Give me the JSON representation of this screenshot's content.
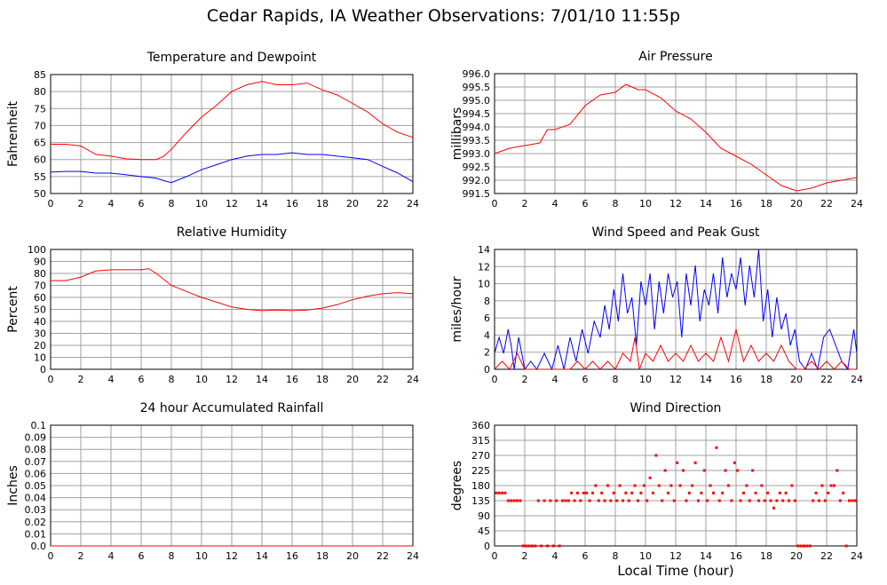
{
  "page": {
    "title": "Cedar Rapids, IA Weather Observations: 7/01/10 11:55p",
    "xlabel": "Local Time (hour)"
  },
  "colors": {
    "primary": "#ff0000",
    "secondary": "#0000ff",
    "grid": "#a0a0a0"
  },
  "chart_data": [
    {
      "id": "temp",
      "type": "line",
      "title": "Temperature and Dewpoint",
      "ylabel": "Fahrenheit",
      "xlim": [
        0,
        24
      ],
      "ylim": [
        50,
        85
      ],
      "xticks": [
        0,
        2,
        4,
        6,
        8,
        10,
        12,
        14,
        16,
        18,
        20,
        22,
        24
      ],
      "yticks": [
        "50",
        "55",
        "60",
        "65",
        "70",
        "75",
        "80",
        "85"
      ],
      "series": [
        {
          "color": "#ff0000",
          "x": [
            0,
            1,
            2,
            3,
            4,
            5,
            6,
            7,
            7.5,
            8,
            9,
            10,
            11,
            12,
            13,
            14,
            15,
            16,
            17,
            18,
            19,
            20,
            21,
            22,
            23,
            24
          ],
          "y": [
            64.5,
            64.5,
            64,
            61.5,
            61,
            60.2,
            60,
            60,
            61,
            63,
            68,
            72.5,
            76,
            80,
            82,
            83,
            82,
            82,
            82.5,
            80.5,
            79,
            76.5,
            74,
            70.5,
            68,
            66.5
          ]
        },
        {
          "color": "#0000ff",
          "x": [
            0,
            1,
            2,
            3,
            4,
            5,
            6,
            7,
            7.5,
            8,
            9,
            10,
            11,
            12,
            13,
            14,
            15,
            16,
            17,
            18,
            19,
            20,
            21,
            22,
            23,
            24
          ],
          "y": [
            56.3,
            56.5,
            56.5,
            56,
            56,
            55.5,
            55,
            54.5,
            53.8,
            53.2,
            55,
            57,
            58.5,
            60,
            61,
            61.5,
            61.5,
            62,
            61.5,
            61.5,
            61,
            60.5,
            60,
            58,
            56,
            53.5
          ]
        }
      ]
    },
    {
      "id": "pressure",
      "type": "line",
      "title": "Air Pressure",
      "ylabel": "millibars",
      "xlim": [
        0,
        24
      ],
      "ylim": [
        991.5,
        996
      ],
      "xticks": [
        0,
        2,
        4,
        6,
        8,
        10,
        12,
        14,
        16,
        18,
        20,
        22,
        24
      ],
      "yticks": [
        "991.5",
        "992.0",
        "992.5",
        "993.0",
        "993.5",
        "994.0",
        "994.5",
        "995.0",
        "995.5",
        "996.0"
      ],
      "series": [
        {
          "color": "#ff0000",
          "x": [
            0,
            1,
            2,
            3,
            3.5,
            4,
            5,
            6,
            7,
            8,
            8.7,
            9.5,
            10,
            11,
            12,
            13,
            14,
            15,
            16,
            17,
            18,
            19,
            19.5,
            20,
            21,
            22,
            23,
            24
          ],
          "y": [
            993.0,
            993.2,
            993.3,
            993.4,
            993.9,
            993.9,
            994.1,
            994.8,
            995.2,
            995.3,
            995.6,
            995.4,
            995.4,
            995.1,
            994.6,
            994.3,
            993.8,
            993.2,
            992.9,
            992.6,
            992.2,
            991.8,
            991.7,
            991.6,
            991.7,
            991.9,
            992.0,
            992.1
          ]
        }
      ]
    },
    {
      "id": "humidity",
      "type": "line",
      "title": "Relative Humidity",
      "ylabel": "Percent",
      "xlim": [
        0,
        24
      ],
      "ylim": [
        0,
        100
      ],
      "xticks": [
        0,
        2,
        4,
        6,
        8,
        10,
        12,
        14,
        16,
        18,
        20,
        22,
        24
      ],
      "yticks": [
        "0",
        "10",
        "20",
        "30",
        "40",
        "50",
        "60",
        "70",
        "80",
        "90",
        "100"
      ],
      "series": [
        {
          "color": "#ff0000",
          "x": [
            0,
            1,
            2,
            3,
            4,
            5,
            6,
            6.5,
            7,
            8,
            9,
            10,
            11,
            12,
            13,
            14,
            15,
            16,
            17,
            18,
            19,
            20,
            21,
            22,
            23,
            24
          ],
          "y": [
            74,
            74,
            77,
            82,
            83,
            83,
            83,
            84,
            80,
            70,
            65,
            60,
            56,
            52,
            50,
            49,
            49.5,
            49,
            49.5,
            51,
            54,
            58,
            61,
            63,
            64,
            63
          ]
        }
      ]
    },
    {
      "id": "wind",
      "type": "line",
      "title": "Wind Speed and Peak Gust",
      "ylabel": "miles/hour",
      "xlim": [
        0,
        24
      ],
      "ylim": [
        0,
        15
      ],
      "xticks": [
        0,
        2,
        4,
        6,
        8,
        10,
        12,
        14,
        16,
        18,
        20,
        22,
        24
      ],
      "yticks": [
        "0",
        "2",
        "4",
        "6",
        "8",
        "10",
        "12",
        "14"
      ],
      "series": [
        {
          "color": "#0000ff",
          "x": [
            0,
            0.3,
            0.6,
            0.9,
            1.1,
            1.3,
            1.6,
            2,
            2.4,
            2.8,
            3.3,
            3.8,
            4.2,
            4.6,
            5,
            5.4,
            5.8,
            6.2,
            6.6,
            7,
            7.3,
            7.6,
            7.9,
            8.2,
            8.5,
            8.8,
            9.1,
            9.4,
            9.7,
            10,
            10.3,
            10.6,
            10.9,
            11.2,
            11.5,
            11.8,
            12.1,
            12.4,
            12.7,
            13,
            13.3,
            13.6,
            13.9,
            14.2,
            14.5,
            14.8,
            15.1,
            15.4,
            15.7,
            16,
            16.3,
            16.6,
            16.9,
            17.2,
            17.5,
            17.8,
            18.1,
            18.4,
            18.7,
            19,
            19.3,
            19.6,
            19.9,
            20.2,
            20.6,
            21,
            21.4,
            21.8,
            22.2,
            22.6,
            23,
            23.4,
            23.8,
            24
          ],
          "y": [
            2,
            4,
            2,
            5,
            3,
            0,
            4,
            0,
            1,
            0,
            2,
            0,
            3,
            0,
            4,
            1,
            5,
            2,
            6,
            4,
            8,
            5,
            10,
            6,
            12,
            7,
            9,
            3,
            11,
            8,
            12,
            5,
            11,
            7,
            12,
            9,
            11,
            4,
            12,
            8,
            13,
            6,
            10,
            8,
            12,
            7,
            14,
            9,
            12,
            10,
            14,
            8,
            13,
            9,
            15,
            6,
            10,
            4,
            9,
            5,
            7,
            3,
            5,
            1,
            0,
            2,
            0,
            4,
            5,
            3,
            1,
            0,
            5,
            2
          ]
        },
        {
          "color": "#ff0000",
          "x": [
            0,
            0.5,
            1,
            1.5,
            2,
            3,
            4,
            4.5,
            5,
            5.5,
            6,
            6.5,
            7,
            7.5,
            8,
            8.5,
            9,
            9.3,
            9.6,
            10,
            10.5,
            11,
            11.5,
            12,
            12.5,
            13,
            13.5,
            14,
            14.5,
            15,
            15.5,
            16,
            16.5,
            17,
            17.5,
            18,
            18.5,
            19,
            19.5,
            20,
            20.5,
            21,
            21.5,
            22,
            22.5,
            23,
            23.5,
            24
          ],
          "y": [
            0,
            1,
            0,
            2,
            0,
            0,
            0,
            0,
            0,
            1,
            0,
            1,
            0,
            1,
            0,
            2,
            1,
            4,
            0,
            2,
            1,
            3,
            1,
            2,
            1,
            3,
            1,
            2,
            1,
            4,
            1,
            5,
            1,
            3,
            1,
            2,
            1,
            3,
            1,
            0,
            0,
            1,
            0,
            1,
            0,
            1,
            0,
            0
          ]
        }
      ]
    },
    {
      "id": "rain",
      "type": "line",
      "title": "24 hour Accumulated Rainfall",
      "ylabel": "Inches",
      "xlim": [
        0,
        24
      ],
      "ylim": [
        0,
        0.1
      ],
      "xticks": [
        0,
        2,
        4,
        6,
        8,
        10,
        12,
        14,
        16,
        18,
        20,
        22,
        24
      ],
      "yticks": [
        "0.0",
        "0.01",
        "0.02",
        "0.03",
        "0.04",
        "0.05",
        "0.06",
        "0.07",
        "0.08",
        "0.09",
        "0.1"
      ],
      "series": [
        {
          "color": "#ff0000",
          "x": [
            0,
            24
          ],
          "y": [
            0,
            0
          ]
        }
      ]
    },
    {
      "id": "winddir",
      "type": "scatter",
      "title": "Wind Direction",
      "ylabel": "degrees",
      "xlim": [
        0,
        24
      ],
      "ylim": [
        0,
        360
      ],
      "xticks": [
        0,
        2,
        4,
        6,
        8,
        10,
        12,
        14,
        16,
        18,
        20,
        22,
        24
      ],
      "yticks": [
        "0",
        "45",
        "90",
        "135",
        "180",
        "225",
        "270",
        "315",
        "360"
      ],
      "series": [
        {
          "color": "#ff0000",
          "x": [
            0.1,
            0.3,
            0.5,
            0.7,
            0.9,
            1.1,
            1.3,
            1.5,
            1.7,
            1.9,
            2.1,
            2.3,
            2.5,
            2.7,
            2.9,
            3.1,
            3.3,
            3.5,
            3.7,
            3.9,
            4.1,
            4.3,
            4.5,
            4.7,
            4.9,
            5.1,
            5.3,
            5.5,
            5.7,
            5.9,
            6.1,
            6.3,
            6.5,
            6.7,
            6.9,
            7.1,
            7.3,
            7.5,
            7.7,
            7.9,
            8.1,
            8.3,
            8.5,
            8.7,
            8.9,
            9.1,
            9.3,
            9.5,
            9.7,
            9.9,
            10.1,
            10.3,
            10.5,
            10.7,
            10.9,
            11.1,
            11.3,
            11.5,
            11.7,
            11.9,
            12.1,
            12.3,
            12.5,
            12.7,
            12.9,
            13.1,
            13.3,
            13.5,
            13.7,
            13.9,
            14.1,
            14.3,
            14.5,
            14.7,
            14.9,
            15.1,
            15.3,
            15.5,
            15.7,
            15.9,
            16.1,
            16.3,
            16.5,
            16.7,
            16.9,
            17.1,
            17.3,
            17.5,
            17.7,
            17.9,
            18.1,
            18.3,
            18.5,
            18.7,
            18.9,
            19.1,
            19.3,
            19.5,
            19.7,
            19.9,
            20.1,
            20.3,
            20.5,
            20.7,
            20.9,
            21.1,
            21.3,
            21.5,
            21.7,
            21.9,
            22.1,
            22.3,
            22.5,
            22.7,
            22.9,
            23.1,
            23.3,
            23.5,
            23.7,
            23.9
          ],
          "y": [
            158,
            158,
            158,
            158,
            135,
            135,
            135,
            135,
            135,
            0,
            0,
            0,
            0,
            0,
            135,
            0,
            135,
            0,
            135,
            0,
            135,
            0,
            135,
            135,
            135,
            158,
            135,
            158,
            135,
            158,
            158,
            135,
            158,
            180,
            135,
            158,
            135,
            180,
            135,
            158,
            135,
            180,
            135,
            158,
            135,
            158,
            180,
            135,
            158,
            180,
            135,
            203,
            158,
            270,
            180,
            135,
            225,
            158,
            180,
            135,
            248,
            180,
            225,
            135,
            158,
            180,
            248,
            135,
            158,
            225,
            135,
            180,
            158,
            293,
            135,
            158,
            225,
            180,
            135,
            248,
            225,
            135,
            158,
            180,
            135,
            225,
            158,
            135,
            180,
            135,
            158,
            135,
            113,
            135,
            158,
            135,
            158,
            135,
            180,
            135,
            0,
            0,
            0,
            0,
            0,
            135,
            158,
            135,
            180,
            135,
            158,
            180,
            180,
            225,
            135,
            158,
            0,
            135,
            135,
            135
          ]
        }
      ]
    }
  ]
}
